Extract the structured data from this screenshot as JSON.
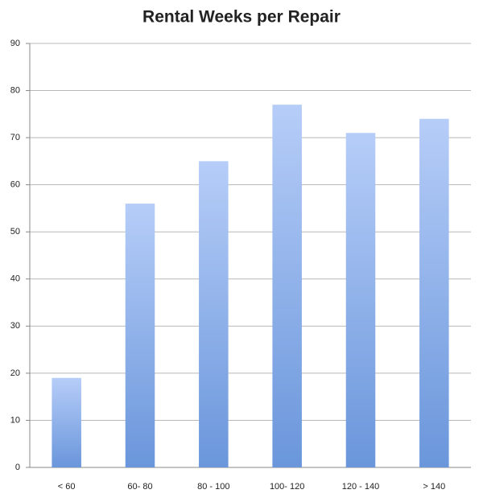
{
  "chart_data": {
    "type": "bar",
    "title": "Rental Weeks per Repair",
    "categories": [
      "< 60",
      "60- 80",
      "80 - 100",
      "100- 120",
      "120 - 140",
      "> 140"
    ],
    "values": [
      19,
      56,
      65,
      77,
      71,
      74
    ],
    "color": [
      "#b6cdf8",
      "#6a96db"
    ],
    "ylim": [
      0,
      90
    ],
    "yticks": [
      0,
      10,
      20,
      30,
      40,
      50,
      60,
      70,
      80,
      90
    ],
    "grid": true
  }
}
